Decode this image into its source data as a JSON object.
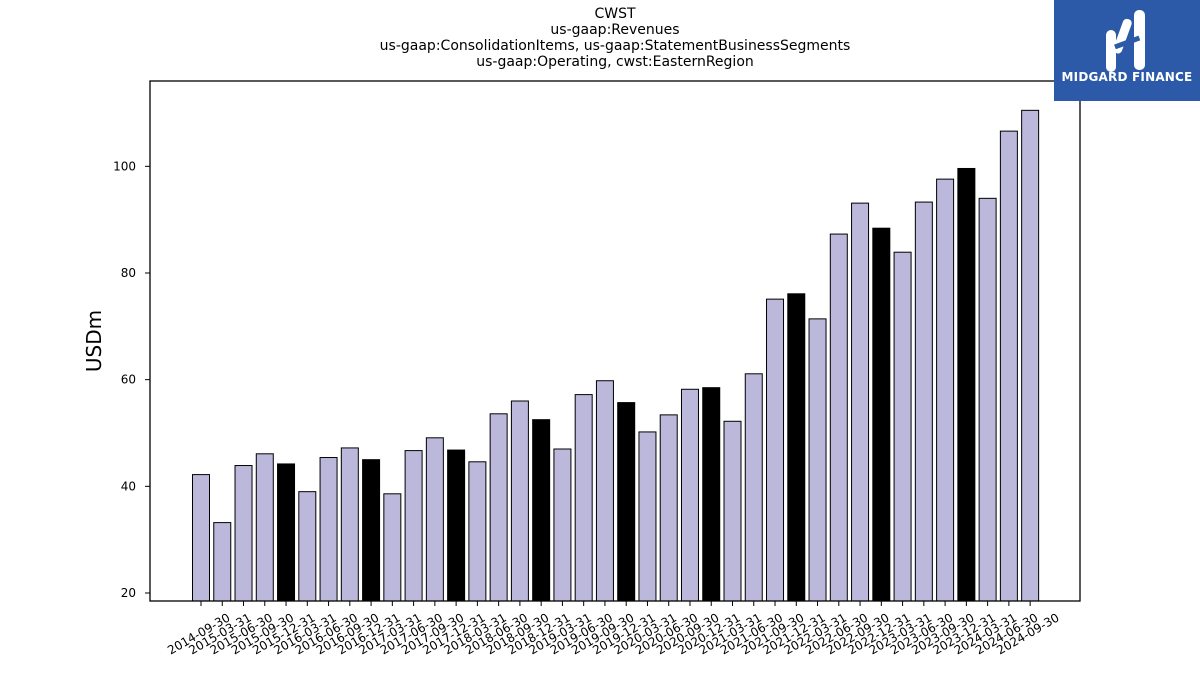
{
  "chart_data": {
    "type": "bar",
    "title_lines": [
      "CWST",
      "us-gaap:Revenues",
      "us-gaap:ConsolidationItems, us-gaap:StatementBusinessSegments",
      "us-gaap:Operating, cwst:EasternRegion"
    ],
    "xlabel": "",
    "ylabel": "USDm",
    "ylim": [
      18.5,
      116
    ],
    "yticks": [
      20,
      40,
      60,
      80,
      100
    ],
    "grid": false,
    "colors": {
      "quarter": "#bcb8dc",
      "year_end": "#000000",
      "edge": "#000000"
    },
    "categories": [
      "2014-09-30",
      "2015-03-31",
      "2015-06-30",
      "2015-09-30",
      "2015-12-31",
      "2016-03-31",
      "2016-06-30",
      "2016-09-30",
      "2016-12-31",
      "2017-03-31",
      "2017-06-30",
      "2017-09-30",
      "2017-12-31",
      "2018-03-31",
      "2018-06-30",
      "2018-09-30",
      "2018-12-31",
      "2019-03-31",
      "2019-06-30",
      "2019-09-30",
      "2019-12-31",
      "2020-03-31",
      "2020-06-30",
      "2020-09-30",
      "2020-12-31",
      "2021-03-31",
      "2021-06-30",
      "2021-09-30",
      "2021-12-31",
      "2022-03-31",
      "2022-06-30",
      "2022-09-30",
      "2022-12-31",
      "2023-03-31",
      "2023-06-30",
      "2023-09-30",
      "2023-12-31",
      "2024-03-31",
      "2024-06-30",
      "2024-09-30"
    ],
    "values": [
      42.2,
      33.2,
      43.9,
      46.1,
      44.2,
      39.0,
      45.4,
      47.2,
      45.0,
      38.6,
      46.7,
      49.1,
      46.8,
      44.6,
      53.6,
      56.0,
      52.5,
      47.0,
      57.2,
      59.8,
      55.7,
      50.2,
      53.4,
      58.2,
      58.5,
      52.2,
      61.1,
      75.1,
      76.1,
      71.4,
      87.3,
      93.1,
      88.4,
      83.9,
      93.3,
      97.6,
      99.6,
      94.0,
      106.6,
      110.5
    ],
    "highlighted": [
      "2015-12-31",
      "2016-12-31",
      "2017-12-31",
      "2018-12-31",
      "2019-12-31",
      "2020-12-31",
      "2021-12-31",
      "2022-12-31",
      "2023-12-31"
    ]
  },
  "logo": {
    "text": "MIDGARD FINANCE"
  }
}
